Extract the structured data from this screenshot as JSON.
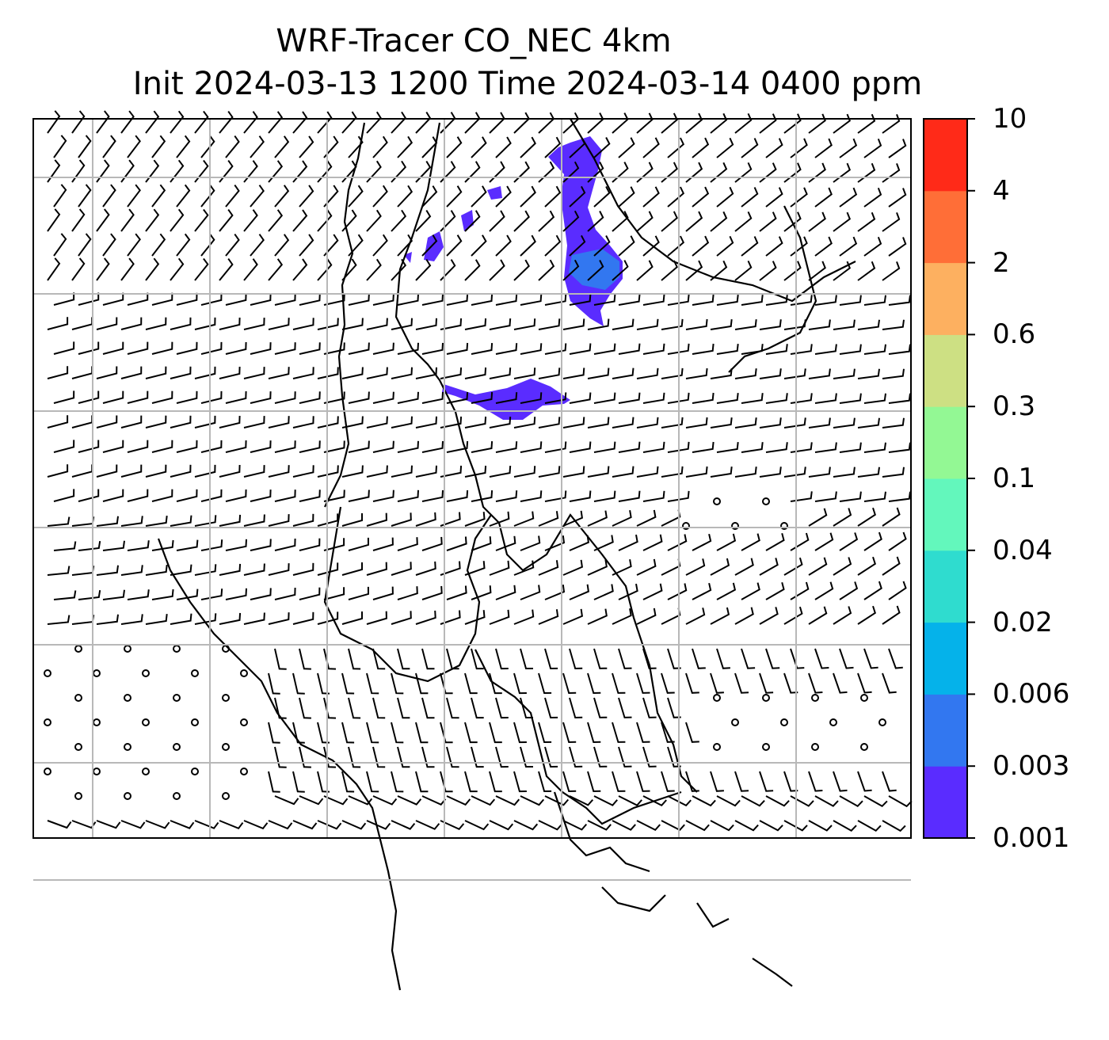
{
  "title": {
    "line1": "WRF-Tracer CO_NEC 4km",
    "line2": "Init 2024-03-13 1200 Time 2024-03-14 0400 ppm"
  },
  "colorbar": {
    "ticks": [
      "0.001",
      "0.003",
      "0.006",
      "0.02",
      "0.04",
      "0.1",
      "0.3",
      "0.6",
      "2",
      "4",
      "10"
    ],
    "colors": [
      "#5a2cff",
      "#3277f0",
      "#05b2ea",
      "#2fdccf",
      "#63f7bc",
      "#93f894",
      "#cde083",
      "#fdb060",
      "#ff6e37",
      "#ff2a18"
    ]
  },
  "map": {
    "tracer_colors": {
      "low": "#5a2cff",
      "mid": "#3277f0"
    },
    "gridline_color": "#b8b8b8",
    "barb_color": "#000000"
  }
}
